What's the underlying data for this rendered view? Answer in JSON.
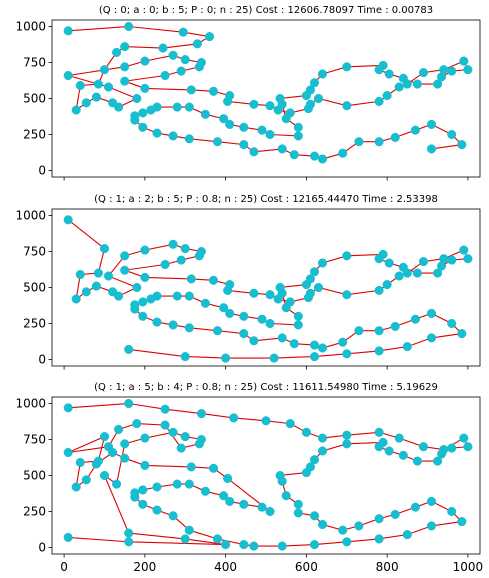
{
  "chart_data": [
    {
      "type": "scatter",
      "title": "(Q : 0; a : 0; b : 5; P : 0; n : 25) Cost : 12606.78097 Time : 0.00783",
      "xlim": [
        -30,
        1030
      ],
      "ylim": [
        -45,
        1045
      ],
      "xticks": [
        0,
        200,
        400,
        600,
        800,
        1000
      ],
      "yticks": [
        0,
        250,
        500,
        750,
        1000
      ],
      "show_xtick_labels": false,
      "grid": false,
      "series": [
        {
          "route_closed": false,
          "x": [
            10,
            160,
            295,
            360,
            330,
            245,
            150,
            130,
            100,
            85,
            40,
            30,
            55,
            80,
            120,
            135,
            180,
            110,
            10,
            150,
            200,
            270,
            300,
            340,
            335,
            290,
            250,
            150,
            200,
            315,
            370,
            410,
            405,
            470,
            510,
            530,
            560,
            605,
            610,
            630,
            700,
            780,
            800,
            830,
            850,
            890,
            940,
            990,
            1000,
            960,
            935,
            925,
            875,
            840,
            805,
            780,
            790,
            700,
            640,
            620,
            610,
            600,
            535,
            540,
            550,
            580,
            580,
            510,
            490,
            445,
            410,
            395,
            350,
            310,
            280,
            230,
            215,
            195,
            175,
            175,
            195,
            230,
            270,
            310,
            380,
            445,
            470,
            540,
            570,
            620,
            640,
            690,
            730,
            780,
            820,
            870,
            910,
            960,
            985,
            910
          ],
          "y": [
            970,
            1000,
            960,
            930,
            880,
            850,
            860,
            820,
            700,
            600,
            590,
            420,
            470,
            510,
            470,
            440,
            500,
            580,
            660,
            720,
            760,
            800,
            770,
            750,
            720,
            690,
            660,
            620,
            570,
            560,
            550,
            520,
            480,
            460,
            450,
            420,
            400,
            430,
            460,
            500,
            450,
            480,
            520,
            580,
            600,
            680,
            700,
            760,
            700,
            690,
            650,
            600,
            600,
            640,
            670,
            700,
            730,
            720,
            670,
            610,
            560,
            520,
            500,
            460,
            360,
            300,
            240,
            250,
            280,
            300,
            320,
            360,
            390,
            440,
            440,
            440,
            420,
            400,
            380,
            350,
            300,
            260,
            240,
            220,
            200,
            180,
            130,
            150,
            110,
            100,
            80,
            120,
            200,
            200,
            230,
            280,
            320,
            250,
            180,
            150
          ]
        }
      ]
    },
    {
      "type": "scatter",
      "title": "(Q : 1; a : 2; b : 5; P : 0.8; n : 25) Cost : 12165.44470 Time : 2.53398",
      "xlim": [
        -30,
        1030
      ],
      "ylim": [
        -45,
        1045
      ],
      "xticks": [
        0,
        200,
        400,
        600,
        800,
        1000
      ],
      "yticks": [
        0,
        250,
        500,
        750,
        1000
      ],
      "show_xtick_labels": false,
      "grid": false,
      "series": [
        {
          "route_closed": false,
          "x": [
            10,
            100,
            85,
            40,
            30,
            55,
            80,
            120,
            135,
            180,
            110,
            150,
            200,
            270,
            300,
            340,
            335,
            290,
            250,
            150,
            200,
            315,
            370,
            410,
            405,
            470,
            510,
            530,
            560,
            605,
            610,
            630,
            700,
            780,
            800,
            830,
            850,
            890,
            940,
            990,
            1000,
            960,
            935,
            925,
            875,
            840,
            805,
            780,
            790,
            700,
            640,
            620,
            610,
            600,
            535,
            540,
            550,
            580,
            580,
            510,
            490,
            445,
            410,
            395,
            350,
            310,
            280,
            230,
            215,
            195,
            175,
            175,
            195,
            230,
            270,
            310,
            380,
            445,
            470,
            540,
            570,
            620,
            640,
            690,
            730,
            780,
            820,
            870,
            910,
            960,
            985,
            910,
            850,
            780,
            700,
            620,
            520,
            400,
            300,
            160
          ],
          "y": [
            970,
            770,
            600,
            590,
            420,
            470,
            510,
            470,
            440,
            500,
            580,
            720,
            760,
            800,
            770,
            750,
            720,
            690,
            660,
            620,
            570,
            560,
            550,
            520,
            480,
            460,
            450,
            420,
            400,
            430,
            460,
            500,
            450,
            480,
            520,
            580,
            600,
            680,
            700,
            760,
            700,
            690,
            650,
            600,
            600,
            640,
            670,
            700,
            730,
            720,
            670,
            610,
            560,
            520,
            500,
            460,
            360,
            300,
            240,
            250,
            280,
            300,
            320,
            360,
            390,
            440,
            440,
            440,
            420,
            400,
            380,
            350,
            300,
            260,
            240,
            220,
            200,
            180,
            130,
            150,
            110,
            100,
            80,
            120,
            200,
            200,
            230,
            280,
            320,
            250,
            180,
            150,
            90,
            60,
            40,
            20,
            10,
            10,
            20,
            70
          ]
        }
      ]
    },
    {
      "type": "scatter",
      "title": "(Q : 1; a : 5; b : 4; P : 0.8; n : 25) Cost : 11611.54980 Time : 5.19629",
      "xlim": [
        -30,
        1030
      ],
      "ylim": [
        -45,
        1045
      ],
      "xticks": [
        0,
        200,
        400,
        600,
        800,
        1000
      ],
      "yticks": [
        0,
        250,
        500,
        750,
        1000
      ],
      "show_xtick_labels": true,
      "grid": false,
      "series": [
        {
          "route_closed": false,
          "x": [
            10,
            160,
            250,
            340,
            420,
            500,
            560,
            600,
            640,
            700,
            780,
            830,
            890,
            940,
            990,
            1000,
            960,
            935,
            925,
            875,
            840,
            805,
            780,
            790,
            700,
            640,
            620,
            610,
            600,
            535,
            540,
            550,
            580,
            580,
            620,
            640,
            690,
            730,
            780,
            820,
            870,
            910,
            960,
            985,
            910,
            850,
            780,
            700,
            620,
            540,
            470,
            445,
            380,
            310,
            270,
            230,
            195,
            175,
            175,
            195,
            230,
            280,
            310,
            350,
            395,
            410,
            445,
            490,
            510,
            405,
            370,
            315,
            200,
            150,
            120,
            80,
            55,
            30,
            40,
            85,
            100,
            10,
            110,
            135,
            180,
            250,
            290,
            335,
            340,
            300,
            270,
            200,
            150,
            130,
            100,
            160,
            300,
            400,
            160,
            10
          ],
          "y": [
            970,
            1000,
            960,
            930,
            900,
            880,
            860,
            800,
            760,
            780,
            800,
            760,
            700,
            680,
            760,
            700,
            690,
            650,
            600,
            600,
            640,
            670,
            700,
            730,
            720,
            670,
            610,
            560,
            520,
            500,
            460,
            360,
            300,
            240,
            220,
            160,
            120,
            150,
            200,
            230,
            280,
            320,
            250,
            180,
            150,
            90,
            60,
            40,
            20,
            10,
            10,
            20,
            60,
            120,
            220,
            260,
            300,
            350,
            380,
            400,
            420,
            440,
            440,
            390,
            360,
            320,
            300,
            280,
            250,
            480,
            550,
            560,
            570,
            620,
            660,
            580,
            470,
            420,
            590,
            600,
            770,
            660,
            700,
            820,
            860,
            850,
            690,
            720,
            750,
            770,
            800,
            760,
            720,
            440,
            500,
            100,
            60,
            20,
            40,
            70
          ]
        }
      ]
    }
  ]
}
